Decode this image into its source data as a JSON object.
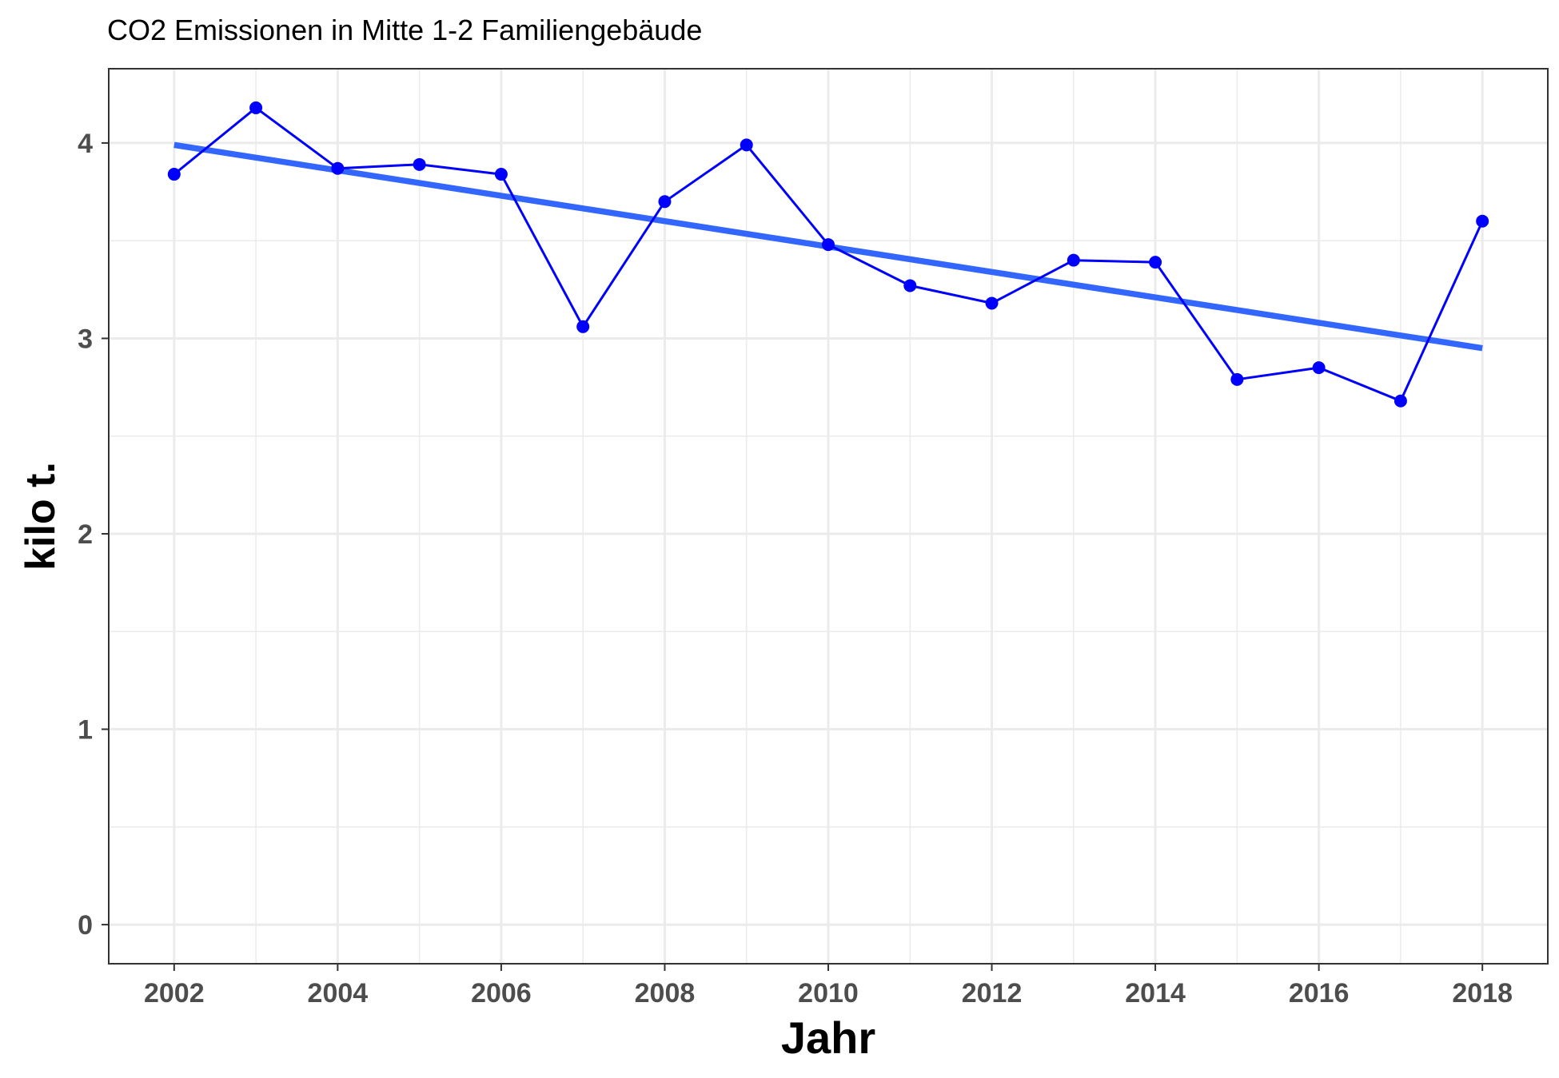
{
  "chart_data": {
    "type": "line",
    "title": "CO2 Emissionen in Mitte 1-2 Familiengebäude",
    "xlabel": "Jahr",
    "ylabel": "kilo t.",
    "xlim": [
      2001.2,
      2018.8
    ],
    "ylim": [
      -0.2,
      4.38
    ],
    "x_ticks": [
      2002,
      2004,
      2006,
      2008,
      2010,
      2012,
      2014,
      2016,
      2018
    ],
    "x_tick_labels": [
      "2002",
      "2004",
      "2006",
      "2008",
      "2010",
      "2012",
      "2014",
      "2016",
      "2018"
    ],
    "y_ticks": [
      0,
      1,
      2,
      3,
      4
    ],
    "y_tick_labels": [
      "0",
      "1",
      "2",
      "3",
      "4"
    ],
    "grid": true,
    "series": [
      {
        "x": [
          2002,
          2003,
          2004,
          2005,
          2006,
          2007,
          2008,
          2009,
          2010,
          2011,
          2012,
          2013,
          2014,
          2015,
          2016,
          2017,
          2018
        ],
        "values": [
          3.84,
          4.18,
          3.87,
          3.89,
          3.84,
          3.06,
          3.7,
          3.99,
          3.48,
          3.27,
          3.18,
          3.4,
          3.39,
          2.79,
          2.85,
          2.68,
          3.6
        ],
        "color": "#0000ff"
      }
    ],
    "trend_line": {
      "x": [
        2002,
        2018
      ],
      "values": [
        3.99,
        2.95
      ],
      "color": "#3366ff"
    }
  }
}
